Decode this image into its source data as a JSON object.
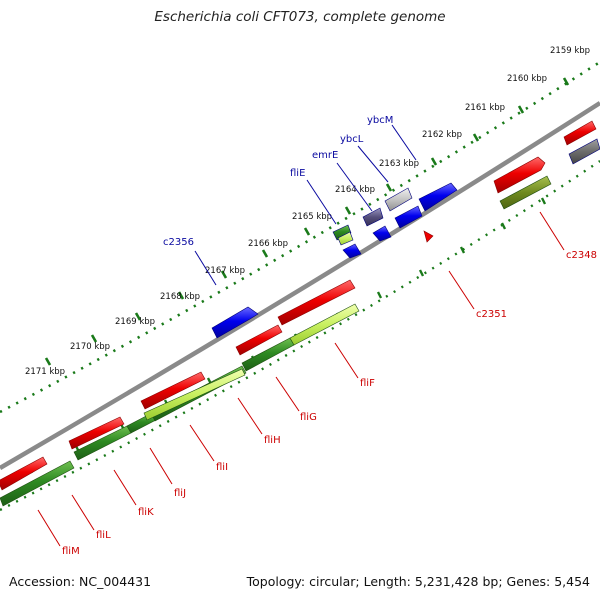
{
  "title": "Escherichia coli CFT073, complete genome",
  "footer": {
    "accession": "Accession: NC_004431",
    "summary": "Topology: circular; Length: 5,231,428 bp; Genes: 5,454"
  },
  "colors": {
    "backbone": "#8a8a8a",
    "forward_cds": "#ee0000",
    "reverse_cds_blue": "#0000ee",
    "feature_green": "#3a8a2a",
    "feature_lightgreen": "#c8f060",
    "feature_olive": "#6f8a20",
    "feature_grey": "#c0c0c0",
    "feature_darkgrey": "#707070",
    "feature_slate": "#55507a",
    "tick_marks": "#1a7a1a",
    "forward_label": "#cc0000",
    "reverse_label": "#0a0aa0"
  },
  "scale_labels": [
    "2159 kbp",
    "2160 kbp",
    "2161 kbp",
    "2162 kbp",
    "2163 kbp",
    "2164 kbp",
    "2165 kbp",
    "2166 kbp",
    "2167 kbp",
    "2168 kbp",
    "2169 kbp",
    "2170 kbp",
    "2171 kbp"
  ],
  "gene_labels_top": [
    "ybcM",
    "ybcL",
    "emrE",
    "fliE",
    "c2356"
  ],
  "gene_labels_bottom": [
    "c2348",
    "c2351",
    "fliF",
    "fliG",
    "fliH",
    "fliI",
    "fliJ",
    "fliK",
    "fliL",
    "fliM"
  ]
}
